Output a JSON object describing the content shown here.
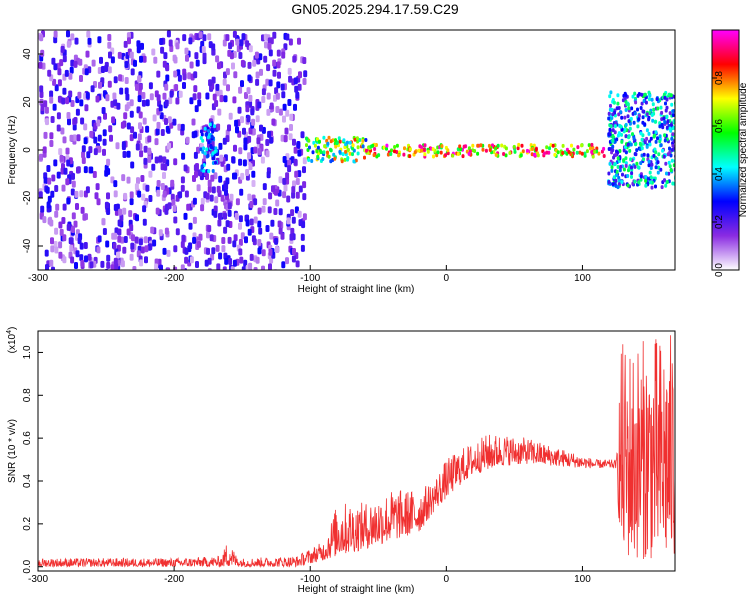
{
  "title": "GN05.2025.294.17.59.C29",
  "chart_data": [
    {
      "type": "heatmap",
      "xlabel": "Height of straight line (km)",
      "ylabel": "Frequency (Hz)",
      "xlim": [
        -300,
        168
      ],
      "ylim": [
        -50,
        50
      ],
      "x_ticks": [
        "-300",
        "-200",
        "-100",
        "0",
        "100"
      ],
      "x_tick_values": [
        -300,
        -200,
        -100,
        0,
        100
      ],
      "y_ticks": [
        "-40",
        "-20",
        "0",
        "20",
        "40"
      ],
      "y_tick_values": [
        -40,
        -20,
        0,
        20,
        40
      ],
      "colorbar": {
        "label": "Normalized spectral amplitude",
        "range": [
          0,
          1
        ],
        "ticks": [
          "0.0",
          "0.2",
          "0.4",
          "0.6",
          "0.8"
        ],
        "tick_values": [
          0.0,
          0.2,
          0.4,
          0.6,
          0.8
        ],
        "colors": [
          "#ffffff",
          "#8a2be2",
          "#0000ff",
          "#00ffff",
          "#00ff00",
          "#ffff00",
          "#ff0000",
          "#ff00ff"
        ]
      },
      "regions": [
        {
          "x_range": [
            -300,
            -105
          ],
          "freq_range": [
            -50,
            50
          ],
          "amplitude": [
            0.05,
            0.28
          ]
        },
        {
          "x_range": [
            -182,
            -170
          ],
          "freq_range": [
            -8,
            12
          ],
          "amplitude": [
            0.25,
            0.45
          ]
        },
        {
          "x_range": [
            -105,
            -60
          ],
          "freq_range": [
            -4,
            6
          ],
          "amplitude": [
            0.3,
            0.85
          ]
        },
        {
          "x_range": [
            -60,
            115
          ],
          "freq_range": [
            -2,
            3
          ],
          "amplitude": [
            0.5,
            1.0
          ]
        },
        {
          "x_range": [
            118,
            168
          ],
          "freq_range": [
            -15,
            25
          ],
          "amplitude": [
            0.15,
            0.55
          ]
        }
      ]
    },
    {
      "type": "line",
      "xlabel": "Height of straight line (km)",
      "ylabel": "SNR (10 * v/v)",
      "y_multiplier": "(x10",
      "y_multiplier_exp": "4",
      "y_multiplier_close": ")",
      "xlim": [
        -300,
        168
      ],
      "ylim": [
        -0.02,
        1.1
      ],
      "x_ticks": [
        "-300",
        "-200",
        "-100",
        "0",
        "100"
      ],
      "x_tick_values": [
        -300,
        -200,
        -100,
        0,
        100
      ],
      "y_ticks": [
        "0.0",
        "0.2",
        "0.4",
        "0.6",
        "0.8",
        "1.0"
      ],
      "y_tick_values": [
        0.0,
        0.2,
        0.4,
        0.6,
        0.8,
        1.0
      ],
      "color": "#f03030",
      "envelope": {
        "x": [
          -300,
          -200,
          -165,
          -160,
          -155,
          -150,
          -110,
          -90,
          -80,
          -60,
          -40,
          -20,
          -10,
          0,
          10,
          20,
          30,
          40,
          60,
          80,
          100,
          110,
          125,
          128,
          168
        ],
        "low": [
          0.0,
          0.0,
          0.0,
          0.0,
          0.0,
          0.0,
          0.0,
          0.03,
          0.05,
          0.08,
          0.12,
          0.16,
          0.25,
          0.32,
          0.38,
          0.43,
          0.45,
          0.47,
          0.48,
          0.47,
          0.46,
          0.46,
          0.46,
          0.04,
          0.03
        ],
        "high": [
          0.04,
          0.04,
          0.05,
          0.14,
          0.06,
          0.04,
          0.05,
          0.12,
          0.3,
          0.3,
          0.36,
          0.36,
          0.4,
          0.5,
          0.55,
          0.58,
          0.62,
          0.62,
          0.6,
          0.56,
          0.52,
          0.5,
          0.5,
          1.05,
          1.1
        ]
      }
    }
  ]
}
